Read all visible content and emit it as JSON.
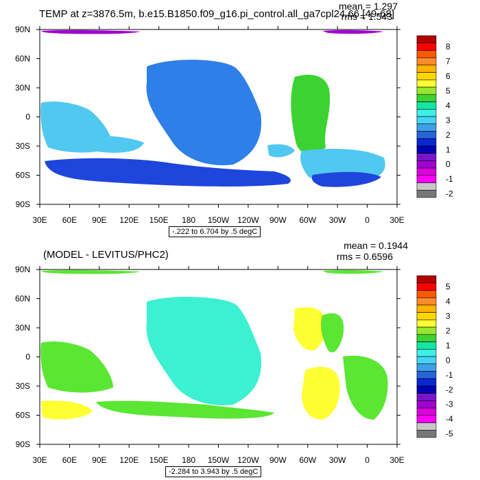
{
  "chart_data": [
    {
      "type": "heatmap",
      "title": "TEMP at z=3876.5m, b.e15.B1850.f09_g16.pi_control.all_ga7cpl24.66 [49-68]",
      "stats": {
        "mean": "mean = 1.297",
        "rms": "rms = 1.543"
      },
      "x_ticks": [
        "30E",
        "60E",
        "90E",
        "120E",
        "150E",
        "180",
        "150W",
        "120W",
        "90W",
        "60W",
        "30W",
        "0",
        "30E"
      ],
      "y_ticks": [
        "90N",
        "60N",
        "30N",
        "0",
        "30S",
        "60S",
        "90S"
      ],
      "contour_info": "-.222 to 6.704 by .5 degC",
      "colorbar": {
        "labels": [
          "8",
          "7",
          "6",
          "5",
          "4",
          "3",
          "2",
          "1",
          "0",
          "-1",
          "-2"
        ],
        "colors": [
          "#b40000",
          "#ff0000",
          "#ff5a00",
          "#ff8c28",
          "#ffb400",
          "#ffd700",
          "#ffff32",
          "#96e632",
          "#3cd232",
          "#14e6a0",
          "#3cf0e6",
          "#46d2f5",
          "#3ca0e6",
          "#2864dc",
          "#0a28d2",
          "#0000b4",
          "#7814c8",
          "#a000d2",
          "#dc00dc",
          "#ff00ff",
          "#c8c8c8",
          "#787878"
        ]
      },
      "dominant_fill": "#2e7fe8",
      "accent_fill": "#50c8f0"
    },
    {
      "type": "heatmap",
      "title": "(MODEL - LEVITUS/PHC2)",
      "stats": {
        "mean": "mean = 0.1944",
        "rms": "rms = 0.6596"
      },
      "x_ticks": [
        "30E",
        "60E",
        "90E",
        "120E",
        "150E",
        "180",
        "150W",
        "120W",
        "90W",
        "60W",
        "30W",
        "0",
        "30E"
      ],
      "y_ticks": [
        "90N",
        "60N",
        "30N",
        "0",
        "30S",
        "60S",
        "90S"
      ],
      "contour_info": "-2.284 to 3.943 by .5 degC",
      "colorbar": {
        "labels": [
          "5",
          "4",
          "3",
          "2",
          "1",
          "0",
          "-1",
          "-2",
          "-3",
          "-4",
          "-5"
        ],
        "colors": [
          "#b40000",
          "#ff0000",
          "#ff5a00",
          "#ff8c28",
          "#ffb400",
          "#ffd700",
          "#ffff32",
          "#96e632",
          "#3cd232",
          "#14e6a0",
          "#3cf0e6",
          "#46d2f5",
          "#3ca0e6",
          "#2864dc",
          "#0a28d2",
          "#0000b4",
          "#7814c8",
          "#a000d2",
          "#dc00dc",
          "#ff00ff",
          "#c8c8c8",
          "#787878"
        ]
      },
      "dominant_fill": "#3cf0d2",
      "accent_fill": "#5ae632"
    }
  ]
}
